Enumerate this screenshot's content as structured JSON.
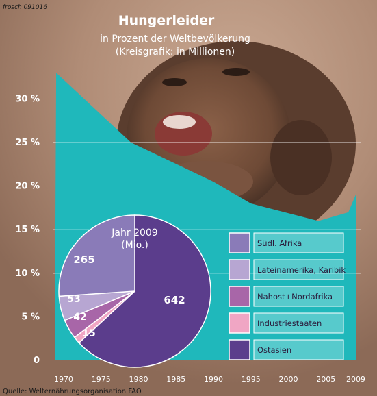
{
  "credit": "frosch 091016",
  "source": "Quelle: Welternährungsorganisation FAO",
  "colors": {
    "area": "#1fb8bb",
    "background": "#b3927e",
    "photo_dark": "#3d2a20",
    "text_light": "#ffffff",
    "pie_stroke": "#ffffff"
  },
  "chart_data": [
    {
      "type": "area",
      "title": "Hungerleider",
      "subtitle": "in Prozent der Weltbevölkerung",
      "note": "(Kreisgrafik: in Millionen)",
      "x_ticks": [
        "1970",
        "1975",
        "1980",
        "1985",
        "1990",
        "1995",
        "2000",
        "2005",
        "2009"
      ],
      "y_ticks": [
        "0",
        "5 %",
        "10 %",
        "15 %",
        "20 %",
        "25 %",
        "30 %"
      ],
      "xlim": [
        1970,
        2009
      ],
      "ylim": [
        0,
        33
      ],
      "grid": true,
      "series": [
        {
          "x": [
            1969,
            1979,
            1990,
            1995,
            2004,
            2008,
            2009
          ],
          "y": [
            33.0,
            25.0,
            20.5,
            18.0,
            16.0,
            17.0,
            19.0
          ]
        }
      ]
    },
    {
      "type": "pie",
      "title": "Jahr 2009",
      "unit": "(Mio.)",
      "legend_position": "right",
      "slices": [
        {
          "label": "Südl. Afrika",
          "value": 265,
          "color": "#8a7bb8",
          "value_label": "265"
        },
        {
          "label": "Lateinamerika, Karibik",
          "value": 53,
          "color": "#b7a6d2",
          "value_label": "53"
        },
        {
          "label": "Nahost+Nordafrika",
          "value": 42,
          "color": "#a866a8",
          "value_label": "42"
        },
        {
          "label": "Industriestaaten",
          "value": 15,
          "color": "#f0a6c4",
          "value_label": "15"
        },
        {
          "label": "Ostasien",
          "value": 642,
          "color": "#5b3d8c",
          "value_label": "642"
        }
      ]
    }
  ]
}
